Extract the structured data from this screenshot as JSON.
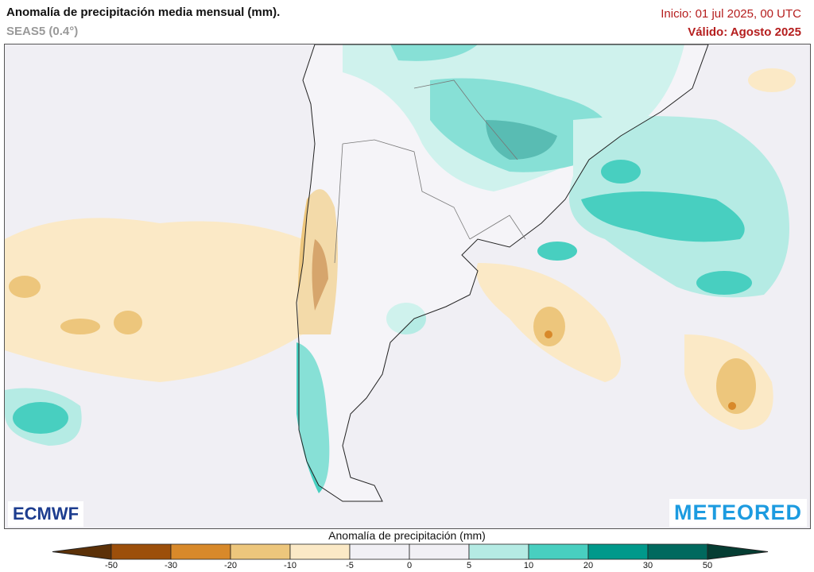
{
  "header": {
    "title": "Anomalía de precipitación media mensual (mm).",
    "model": "SEAS5 (0.4°)",
    "init": "Inicio: 01 jul 2025, 00 UTC",
    "valid": "Válido: Agosto 2025"
  },
  "logos": {
    "left": "ECMWF",
    "right": "METEORED"
  },
  "colorbar": {
    "title": "Anomalía de precipitación (mm)",
    "ticks": [
      "-50",
      "-30",
      "-20",
      "-10",
      "-5",
      "0",
      "5",
      "10",
      "20",
      "30",
      "50"
    ],
    "colors": [
      "#5c3108",
      "#9c4f0b",
      "#d8892a",
      "#edc67c",
      "#fbe9c6",
      "#f1f0f5",
      "#f1f0f5",
      "#b5ebe4",
      "#48cfc0",
      "#00998b",
      "#00695e",
      "#053d33"
    ]
  }
}
